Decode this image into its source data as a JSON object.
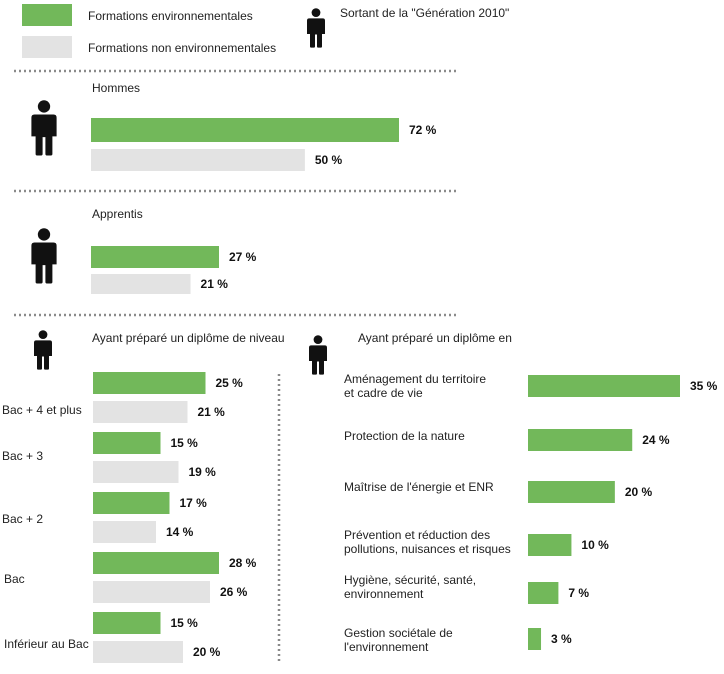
{
  "colors": {
    "environmental": "#72b85a",
    "non_environmental": "#e3e3e3",
    "separator": "#8a8a8a",
    "icon": "#111111"
  },
  "legend": {
    "environmental": "Formations environnementales",
    "non_environmental": "Formations non environnementales",
    "person_icon_label": "Sortant de la \"Génération 2010\""
  },
  "chart_data": [
    {
      "type": "bar",
      "orientation": "horizontal",
      "title": "Hommes",
      "series": [
        {
          "name": "Formations environnementales",
          "values": [
            72
          ]
        },
        {
          "name": "Formations non environnementales",
          "values": [
            50
          ]
        }
      ],
      "value_labels": [
        [
          "72 %"
        ],
        [
          "50 %"
        ]
      ]
    },
    {
      "type": "bar",
      "orientation": "horizontal",
      "title": "Apprentis",
      "series": [
        {
          "name": "Formations environnementales",
          "values": [
            27
          ]
        },
        {
          "name": "Formations non environnementales",
          "values": [
            21
          ]
        }
      ],
      "value_labels": [
        [
          "27 %"
        ],
        [
          "21 %"
        ]
      ]
    },
    {
      "type": "bar",
      "orientation": "horizontal",
      "title": "Ayant préparé un diplôme de niveau",
      "categories": [
        "Bac + 4 et plus",
        "Bac + 3",
        "Bac + 2",
        "Bac",
        "Inférieur au Bac"
      ],
      "series": [
        {
          "name": "Formations environnementales",
          "values": [
            25,
            15,
            17,
            28,
            15
          ]
        },
        {
          "name": "Formations non environnementales",
          "values": [
            21,
            19,
            14,
            26,
            20
          ]
        }
      ],
      "value_labels": [
        [
          "25 %",
          "15 %",
          "17 %",
          "28 %",
          "15 %"
        ],
        [
          "21 %",
          "19 %",
          "14 %",
          "26 %",
          "20 %"
        ]
      ]
    },
    {
      "type": "bar",
      "orientation": "horizontal",
      "title": "Ayant préparé un diplôme en",
      "categories": [
        [
          "Aménagement du territoire",
          "et cadre de vie"
        ],
        [
          "Protection de la nature"
        ],
        [
          "Maîtrise de l'énergie et ENR"
        ],
        [
          "Prévention et réduction des",
          "pollutions, nuisances et risques"
        ],
        [
          "Hygiène, sécurité, santé,",
          "environnement"
        ],
        [
          "Gestion sociétale de",
          "l'environnement"
        ]
      ],
      "series": [
        {
          "name": "Formations environnementales",
          "values": [
            35,
            24,
            20,
            10,
            7,
            3
          ]
        }
      ],
      "value_labels": [
        [
          "35 %",
          "24 %",
          "20 %",
          "10 %",
          "7 %",
          "3 %"
        ]
      ]
    }
  ]
}
